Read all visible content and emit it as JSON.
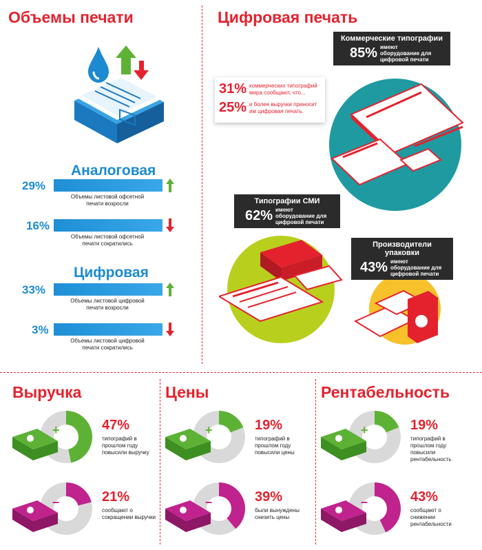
{
  "volumes": {
    "title": "Объемы печати",
    "analog": {
      "title": "Аналоговая",
      "rows": [
        {
          "pct": "29%",
          "note": "Объемы листовой офсетной печати возросли",
          "fill": 0.29
        },
        {
          "pct": "16%",
          "note": "Объемы листовой офсетной печати сократились",
          "fill": 0.16
        }
      ]
    },
    "digital": {
      "title": "Цифровая",
      "rows": [
        {
          "pct": "33%",
          "note": "Объемы листовой цифровой печати возросли",
          "fill": 0.33
        },
        {
          "pct": "3%",
          "note": "Объемы листовой цифровой печати сократились",
          "fill": 0.03
        }
      ]
    }
  },
  "digital_print": {
    "title": "Цифровая печать",
    "commercial": {
      "title": "Коммерческие типографии",
      "pct": "85%",
      "text": "имеют оборудование для цифровой печати"
    },
    "stats": [
      {
        "pct": "31%",
        "text": "коммерческих типографий мира сообщают, что..."
      },
      {
        "pct": "25%",
        "text": "и более выручки приносит им цифровая печать."
      }
    ],
    "media": {
      "title": "Типографии СМИ",
      "pct": "62%",
      "text": "имеют оборудование для цифровой печати"
    },
    "packaging": {
      "title": "Производители упаковки",
      "pct": "43%",
      "text": "имеют оборудование для цифровой печати"
    }
  },
  "bottom": [
    {
      "title": "Выручка",
      "up": {
        "pct": "47%",
        "text": "типографий в прошлом году повысили выручку",
        "value": 0.47
      },
      "down": {
        "pct": "21%",
        "text": "сообщают о сокращении выручки",
        "value": 0.21
      }
    },
    {
      "title": "Цены",
      "up": {
        "pct": "19%",
        "text": "типографий в прошлом году повысили цены",
        "value": 0.19
      },
      "down": {
        "pct": "39%",
        "text": "были вынуждены снизить цены",
        "value": 0.39
      }
    },
    {
      "title": "Рентабельность",
      "up": {
        "pct": "19%",
        "text": "типографий в прошлом году повысили рентабельность",
        "value": 0.19
      },
      "down": {
        "pct": "43%",
        "text": "сообщают о снижении рентабельности",
        "value": 0.43
      }
    }
  ],
  "colors": {
    "red": "#e4222e",
    "blue": "#1c8ad0",
    "green": "#5db236",
    "magenta": "#c0238d",
    "teal": "#1f9aa0",
    "lime": "#b9cf1e",
    "yellow": "#f6c12a"
  }
}
